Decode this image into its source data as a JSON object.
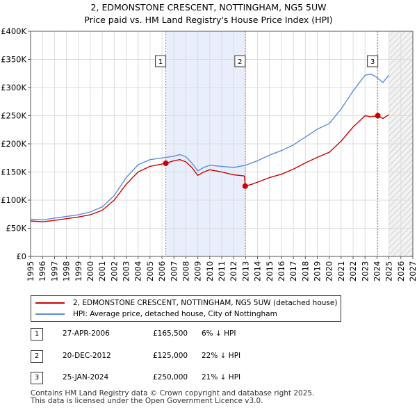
{
  "title": {
    "line1": "2, EDMONSTONE CRESCENT, NOTTINGHAM, NG5 5UW",
    "line2": "Price paid vs. HM Land Registry's House Price Index (HPI)"
  },
  "chart_data": {
    "type": "line",
    "x_range": [
      1995,
      2027
    ],
    "y_range": [
      0,
      400000
    ],
    "y_ticks": [
      {
        "value": 0,
        "label": "£0"
      },
      {
        "value": 50000,
        "label": "£50K"
      },
      {
        "value": 100000,
        "label": "£100K"
      },
      {
        "value": 150000,
        "label": "£150K"
      },
      {
        "value": 200000,
        "label": "£200K"
      },
      {
        "value": 250000,
        "label": "£250K"
      },
      {
        "value": 300000,
        "label": "£300K"
      },
      {
        "value": 350000,
        "label": "£350K"
      },
      {
        "value": 400000,
        "label": "£400K"
      }
    ],
    "x_ticks": [
      "1995",
      "1996",
      "1997",
      "1998",
      "1999",
      "2000",
      "2001",
      "2002",
      "2003",
      "2004",
      "2005",
      "2006",
      "2007",
      "2008",
      "2009",
      "2010",
      "2011",
      "2012",
      "2013",
      "2014",
      "2015",
      "2016",
      "2017",
      "2018",
      "2019",
      "2020",
      "2021",
      "2022",
      "2023",
      "2024",
      "2025",
      "2026",
      "2027"
    ],
    "highlight_period": [
      2006.32,
      2012.97
    ],
    "forecast_start": 2025.0,
    "series": [
      {
        "name": "2, EDMONSTONE CRESCENT, NOTTINGHAM, NG5 5UW (detached house)",
        "color": "#cc0000",
        "points": [
          [
            1995,
            63000
          ],
          [
            1996,
            61500
          ],
          [
            1997,
            64000
          ],
          [
            1998,
            67000
          ],
          [
            1999,
            70000
          ],
          [
            2000,
            74000
          ],
          [
            2001,
            82000
          ],
          [
            2002,
            100000
          ],
          [
            2003,
            128000
          ],
          [
            2004,
            150000
          ],
          [
            2005,
            160000
          ],
          [
            2006.32,
            165500
          ],
          [
            2007,
            170000
          ],
          [
            2007.5,
            172000
          ],
          [
            2008,
            168000
          ],
          [
            2008.5,
            158000
          ],
          [
            2009,
            144000
          ],
          [
            2009.5,
            150000
          ],
          [
            2010,
            154000
          ],
          [
            2011,
            150000
          ],
          [
            2012,
            145000
          ],
          [
            2012.9,
            143000
          ],
          [
            2012.97,
            125000
          ],
          [
            2013.5,
            128000
          ],
          [
            2014,
            132000
          ],
          [
            2015,
            140000
          ],
          [
            2016,
            146000
          ],
          [
            2017,
            155000
          ],
          [
            2018,
            166000
          ],
          [
            2019,
            176000
          ],
          [
            2020,
            185000
          ],
          [
            2021,
            205000
          ],
          [
            2022,
            230000
          ],
          [
            2023,
            250000
          ],
          [
            2023.5,
            248000
          ],
          [
            2024.07,
            250000
          ],
          [
            2024.5,
            245000
          ],
          [
            2025,
            252000
          ]
        ]
      },
      {
        "name": "HPI: Average price, detached house, City of Nottingham",
        "color": "#5b8ed6",
        "points": [
          [
            1995,
            66000
          ],
          [
            1996,
            65000
          ],
          [
            1997,
            68000
          ],
          [
            1998,
            71000
          ],
          [
            1999,
            74000
          ],
          [
            2000,
            79000
          ],
          [
            2001,
            88000
          ],
          [
            2002,
            108000
          ],
          [
            2003,
            140000
          ],
          [
            2004,
            163000
          ],
          [
            2005,
            172000
          ],
          [
            2006,
            175000
          ],
          [
            2007,
            178000
          ],
          [
            2007.5,
            181000
          ],
          [
            2008,
            177000
          ],
          [
            2008.5,
            166000
          ],
          [
            2009,
            152000
          ],
          [
            2009.5,
            158000
          ],
          [
            2010,
            162000
          ],
          [
            2011,
            160000
          ],
          [
            2012,
            158000
          ],
          [
            2013,
            162000
          ],
          [
            2014,
            170000
          ],
          [
            2015,
            180000
          ],
          [
            2016,
            188000
          ],
          [
            2017,
            198000
          ],
          [
            2018,
            212000
          ],
          [
            2019,
            226000
          ],
          [
            2020,
            236000
          ],
          [
            2021,
            262000
          ],
          [
            2022,
            294000
          ],
          [
            2023,
            322000
          ],
          [
            2023.5,
            324000
          ],
          [
            2024,
            318000
          ],
          [
            2024.5,
            309000
          ],
          [
            2025,
            322000
          ]
        ]
      }
    ],
    "sales": [
      {
        "num": "1",
        "x": 2006.32,
        "value": 165500,
        "date": "27-APR-2006",
        "price": "£165,500",
        "hpi": "6% ↓ HPI"
      },
      {
        "num": "2",
        "x": 2012.97,
        "value": 125000,
        "date": "20-DEC-2012",
        "price": "£125,000",
        "hpi": "22% ↓ HPI"
      },
      {
        "num": "3",
        "x": 2024.07,
        "value": 250000,
        "date": "25-JAN-2024",
        "price": "£250,000",
        "hpi": "21% ↓ HPI"
      }
    ]
  },
  "legend": {
    "items": [
      {
        "label": "2, EDMONSTONE CRESCENT, NOTTINGHAM, NG5 5UW (detached house)",
        "color": "#cc0000"
      },
      {
        "label": "HPI: Average price, detached house, City of Nottingham",
        "color": "#5b8ed6"
      }
    ]
  },
  "footer": {
    "line1": "Contains HM Land Registry data © Crown copyright and database right 2025.",
    "line2": "This data is licensed under the Open Government Licence v3.0."
  }
}
